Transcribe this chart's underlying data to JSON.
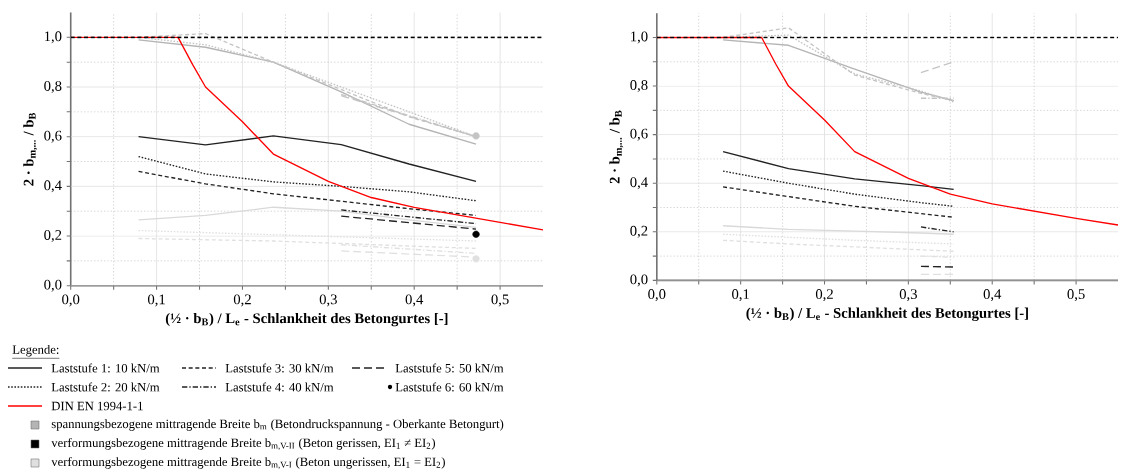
{
  "chart_data": [
    {
      "type": "line",
      "xlabel": "(½ · b$_{B}$) / L$_{e}$ - Schlankheit des Betongurtes [-]",
      "ylabel": "2 · b$_{m,...}$ / b$_{B}$",
      "xlim": [
        0,
        0.55
      ],
      "ylim": [
        0,
        1.1
      ],
      "xticks": [
        {
          "value": 0,
          "label": "0,0"
        },
        {
          "value": 0.05,
          "label": null
        },
        {
          "value": 0.1,
          "label": "0,1"
        },
        {
          "value": 0.15,
          "label": null
        },
        {
          "value": 0.2,
          "label": "0,2"
        },
        {
          "value": 0.25,
          "label": null
        },
        {
          "value": 0.3,
          "label": "0,3"
        },
        {
          "value": 0.35,
          "label": null
        },
        {
          "value": 0.4,
          "label": "0,4"
        },
        {
          "value": 0.45,
          "label": null
        },
        {
          "value": 0.5,
          "label": "0,5"
        }
      ],
      "yticks": [
        {
          "value": 0,
          "label": "0,0"
        },
        {
          "value": 0.1,
          "label": null
        },
        {
          "value": 0.2,
          "label": "0,2"
        },
        {
          "value": 0.3,
          "label": null
        },
        {
          "value": 0.4,
          "label": "0,4"
        },
        {
          "value": 0.5,
          "label": null
        },
        {
          "value": 0.6,
          "label": "0,6"
        },
        {
          "value": 0.7,
          "label": null
        },
        {
          "value": 0.8,
          "label": "0,8"
        },
        {
          "value": 0.9,
          "label": null
        },
        {
          "value": 1.0,
          "label": "1,0"
        }
      ],
      "grid": true,
      "legend": "bottom left",
      "legend_title": "Legende:",
      "ref_lines": [
        {
          "axis": "y",
          "value": 1.0,
          "color": "#000000",
          "line_style": "dashed"
        }
      ],
      "series": [
        {
          "color": "#b4b4b4",
          "line_style": "solid",
          "x": [
            0.079,
            0.157,
            0.236,
            0.315,
            0.394,
            0.472
          ],
          "values": [
            0.99,
            0.96,
            0.9,
            0.78,
            0.65,
            0.57
          ]
        },
        {
          "color": "#c4c4c4",
          "line_style": "dotted",
          "x": [
            0.079,
            0.157,
            0.236,
            0.315,
            0.394,
            0.472
          ],
          "values": [
            1.0,
            0.97,
            0.9,
            0.8,
            0.7,
            0.6
          ]
        },
        {
          "color": "#c4c4c4",
          "line_style": "dashed",
          "x": [
            0.079,
            0.157,
            0.236,
            0.315,
            0.394,
            0.472
          ],
          "values": [
            1.0,
            1.015,
            0.9,
            0.79,
            0.68,
            0.6
          ]
        },
        {
          "color": "#c4c4c4",
          "line_style": "dashdot",
          "x": [
            0.315,
            0.472
          ],
          "values": [
            0.77,
            0.6
          ]
        },
        {
          "color": "#c4c4c4",
          "line_style": "longdash",
          "x": [
            0.315,
            0.472
          ],
          "values": [
            0.765,
            0.6
          ]
        },
        {
          "type": "scatter",
          "marker": "circle",
          "color": "#c4c4c4",
          "x": [
            0.472
          ],
          "values": [
            0.603
          ]
        },
        {
          "color": "#d9d9d9",
          "line_style": "solid",
          "x": [
            0.079,
            0.157,
            0.236,
            0.315,
            0.394,
            0.472
          ],
          "values": [
            0.265,
            0.283,
            0.316,
            0.3,
            0.265,
            0.235
          ]
        },
        {
          "color": "#e0e0e0",
          "line_style": "dotted",
          "x": [
            0.079,
            0.472
          ],
          "values": [
            0.222,
            0.18
          ]
        },
        {
          "color": "#e0e0e0",
          "line_style": "dashed",
          "x": [
            0.079,
            0.236,
            0.472
          ],
          "values": [
            0.19,
            0.18,
            0.15
          ]
        },
        {
          "color": "#e0e0e0",
          "line_style": "dashdot",
          "x": [
            0.315,
            0.472
          ],
          "values": [
            0.165,
            0.13
          ]
        },
        {
          "color": "#e0e0e0",
          "line_style": "longdash",
          "x": [
            0.315,
            0.472
          ],
          "values": [
            0.14,
            0.115
          ]
        },
        {
          "type": "scatter",
          "marker": "circle",
          "color": "#e0e0e0",
          "x": [
            0.472
          ],
          "values": [
            0.108
          ]
        },
        {
          "name": "Laststufe 1: 10 kN/m",
          "color": "#222222",
          "line_style": "solid",
          "x": [
            0.079,
            0.157,
            0.236,
            0.315,
            0.394,
            0.472
          ],
          "values": [
            0.6,
            0.567,
            0.603,
            0.568,
            0.49,
            0.42
          ]
        },
        {
          "name": "Laststufe 2: 20 kN/m",
          "color": "#222222",
          "line_style": "dotted",
          "x": [
            0.079,
            0.157,
            0.236,
            0.315,
            0.394,
            0.472
          ],
          "values": [
            0.52,
            0.45,
            0.418,
            0.4,
            0.378,
            0.342
          ]
        },
        {
          "name": "Laststufe 3: 30 kN/m",
          "color": "#222222",
          "line_style": "dashed",
          "x": [
            0.079,
            0.157,
            0.236,
            0.315,
            0.394,
            0.472
          ],
          "values": [
            0.46,
            0.41,
            0.37,
            0.34,
            0.31,
            0.283
          ]
        },
        {
          "name": "Laststufe 4: 40 kN/m",
          "color": "#222222",
          "line_style": "dashdot",
          "x": [
            0.315,
            0.472
          ],
          "values": [
            0.305,
            0.25
          ]
        },
        {
          "name": "Laststufe 5: 50 kN/m",
          "color": "#222222",
          "line_style": "longdash",
          "x": [
            0.315,
            0.472
          ],
          "values": [
            0.28,
            0.228
          ]
        },
        {
          "name": "Laststufe 6: 60 kN/m",
          "type": "scatter",
          "marker": "circle",
          "color": "#000000",
          "x": [
            0.472
          ],
          "values": [
            0.207
          ]
        },
        {
          "name": "DIN EN 1994-1-1",
          "color": "#ff0000",
          "line_style": "solid",
          "x": [
            0,
            0.125,
            0.142,
            0.157,
            0.2,
            0.236,
            0.3,
            0.35,
            0.4,
            0.45,
            0.5,
            0.55
          ],
          "values": [
            1.0,
            1.0,
            0.89,
            0.8,
            0.66,
            0.53,
            0.42,
            0.355,
            0.315,
            0.285,
            0.255,
            0.225
          ]
        },
        {
          "name": "spannungsbezogene mittragende Breite b$_{m}$ (Betondruckspannung - Oberkante Betongurt)",
          "type": "scatter",
          "marker": "square",
          "color": "#b4b4b4"
        },
        {
          "name": "verformungsbezogene mittragende Breite b$_{m,V-II}$ (Beton gerissen, EI$_{1}$ ≠ EI$_{2}$)",
          "type": "scatter",
          "marker": "square",
          "color": "#000000"
        },
        {
          "name": "verformungsbezogene mittragende Breite b$_{m,V-I}$ (Beton ungerissen, EI$_{1}$ = EI$_{2}$)",
          "type": "scatter",
          "marker": "square",
          "color": "#e0e0e0"
        }
      ]
    },
    {
      "type": "line",
      "xlabel": "(½ · b$_{B}$) / L$_{e}$ - Schlankheit des Betongurtes [-]",
      "ylabel": "2 · b$_{m,...}$ / b$_{B}$",
      "xlim": [
        0,
        0.55
      ],
      "ylim": [
        0,
        1.1
      ],
      "xticks": [
        {
          "value": 0,
          "label": "0,0"
        },
        {
          "value": 0.05,
          "label": null
        },
        {
          "value": 0.1,
          "label": "0,1"
        },
        {
          "value": 0.15,
          "label": null
        },
        {
          "value": 0.2,
          "label": "0,2"
        },
        {
          "value": 0.25,
          "label": null
        },
        {
          "value": 0.3,
          "label": "0,3"
        },
        {
          "value": 0.35,
          "label": null
        },
        {
          "value": 0.4,
          "label": "0,4"
        },
        {
          "value": 0.45,
          "label": null
        },
        {
          "value": 0.5,
          "label": "0,5"
        }
      ],
      "yticks": [
        {
          "value": 0,
          "label": "0,0"
        },
        {
          "value": 0.1,
          "label": null
        },
        {
          "value": 0.2,
          "label": "0,2"
        },
        {
          "value": 0.3,
          "label": null
        },
        {
          "value": 0.4,
          "label": "0,4"
        },
        {
          "value": 0.5,
          "label": null
        },
        {
          "value": 0.6,
          "label": "0,6"
        },
        {
          "value": 0.7,
          "label": null
        },
        {
          "value": 0.8,
          "label": "0,8"
        },
        {
          "value": 0.9,
          "label": null
        },
        {
          "value": 1.0,
          "label": "1,0"
        }
      ],
      "grid": true,
      "ref_lines": [
        {
          "axis": "y",
          "value": 1.0,
          "color": "#000000",
          "line_style": "dashed"
        }
      ],
      "series": [
        {
          "color": "#b4b4b4",
          "line_style": "solid",
          "x": [
            0.079,
            0.157,
            0.236,
            0.315,
            0.354
          ],
          "values": [
            0.99,
            0.968,
            0.87,
            0.775,
            0.74
          ]
        },
        {
          "color": "#c4c4c4",
          "line_style": "dotted",
          "x": [
            0.079,
            0.157,
            0.236,
            0.315,
            0.354
          ],
          "values": [
            1.0,
            1.01,
            0.85,
            0.78,
            0.735
          ]
        },
        {
          "color": "#c4c4c4",
          "line_style": "dashed",
          "x": [
            0.079,
            0.157,
            0.236,
            0.315,
            0.354
          ],
          "values": [
            1.0,
            1.04,
            0.845,
            0.77,
            0.74
          ]
        },
        {
          "color": "#c4c4c4",
          "line_style": "dashdot",
          "x": [
            0.315,
            0.354
          ],
          "values": [
            0.75,
            0.75
          ]
        },
        {
          "color": "#c4c4c4",
          "line_style": "longdash",
          "x": [
            0.315,
            0.354
          ],
          "values": [
            0.855,
            0.9
          ]
        },
        {
          "color": "#d9d9d9",
          "line_style": "solid",
          "x": [
            0.079,
            0.157,
            0.236,
            0.315,
            0.354
          ],
          "values": [
            0.225,
            0.21,
            0.203,
            0.195,
            0.19
          ]
        },
        {
          "color": "#e0e0e0",
          "line_style": "dotted",
          "x": [
            0.079,
            0.236,
            0.354
          ],
          "values": [
            0.19,
            0.165,
            0.15
          ]
        },
        {
          "color": "#e0e0e0",
          "line_style": "dashed",
          "x": [
            0.079,
            0.157,
            0.354
          ],
          "values": [
            0.165,
            0.15,
            0.12
          ]
        },
        {
          "color": "#e0e0e0",
          "line_style": "dashdot",
          "x": [
            0.315,
            0.354
          ],
          "values": [
            0.1,
            0.095
          ]
        },
        {
          "color": "#e0e0e0",
          "line_style": "longdash",
          "x": [
            0.315,
            0.354
          ],
          "values": [
            0.025,
            0.025
          ]
        },
        {
          "color": "#222222",
          "line_style": "solid",
          "x": [
            0.079,
            0.157,
            0.236,
            0.315,
            0.354
          ],
          "values": [
            0.53,
            0.46,
            0.418,
            0.39,
            0.375
          ]
        },
        {
          "color": "#222222",
          "line_style": "dotted",
          "x": [
            0.079,
            0.157,
            0.236,
            0.315,
            0.354
          ],
          "values": [
            0.45,
            0.4,
            0.355,
            0.32,
            0.305
          ]
        },
        {
          "color": "#222222",
          "line_style": "dashed",
          "x": [
            0.079,
            0.157,
            0.236,
            0.315,
            0.354
          ],
          "values": [
            0.385,
            0.345,
            0.305,
            0.275,
            0.26
          ]
        },
        {
          "color": "#222222",
          "line_style": "dashdot",
          "x": [
            0.315,
            0.354
          ],
          "values": [
            0.22,
            0.2
          ]
        },
        {
          "color": "#222222",
          "line_style": "longdash",
          "x": [
            0.315,
            0.354
          ],
          "values": [
            0.058,
            0.055
          ]
        },
        {
          "color": "#ff0000",
          "line_style": "solid",
          "x": [
            0,
            0.125,
            0.142,
            0.157,
            0.2,
            0.236,
            0.3,
            0.35,
            0.4,
            0.45,
            0.5,
            0.55
          ],
          "values": [
            1.0,
            1.0,
            0.89,
            0.8,
            0.66,
            0.53,
            0.42,
            0.355,
            0.315,
            0.285,
            0.255,
            0.228
          ]
        }
      ]
    }
  ]
}
